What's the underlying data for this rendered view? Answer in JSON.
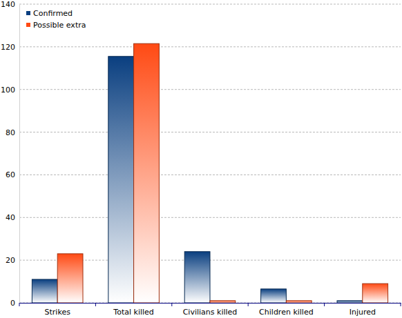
{
  "chart_data": {
    "type": "bar",
    "categories": [
      "Strikes",
      "Total killed",
      "Civilians killed",
      "Children killed",
      "Injured"
    ],
    "series": [
      {
        "name": "Confirmed",
        "color": "#0a3f80",
        "values": [
          11,
          115.5,
          24,
          6.5,
          1
        ]
      },
      {
        "name": "Possible extra",
        "color": "#ff4a14",
        "values": [
          23,
          121.5,
          1,
          1,
          9
        ]
      }
    ],
    "ylim": [
      0,
      140
    ],
    "yticks": [
      0,
      20,
      40,
      60,
      80,
      100,
      120,
      140
    ],
    "grid": true,
    "legend": "upper left"
  }
}
